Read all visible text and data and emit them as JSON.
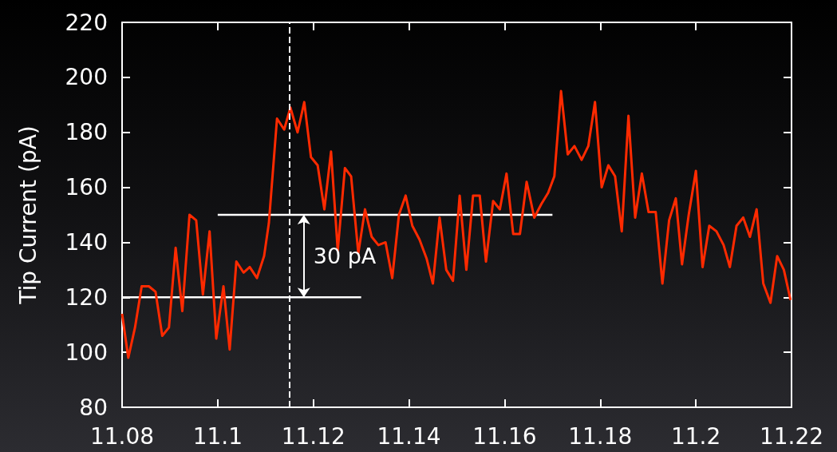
{
  "chart_data": {
    "type": "line",
    "ylabel": "Tip Current (pA)",
    "xlim": [
      11.08,
      11.22
    ],
    "xticks": [
      11.08,
      11.1,
      11.12,
      11.14,
      11.16,
      11.18,
      11.2,
      11.22
    ],
    "ylim": [
      80,
      220
    ],
    "yticks": [
      80,
      100,
      120,
      140,
      160,
      180,
      200,
      220
    ],
    "marker": "none",
    "series": [
      {
        "color": "#ff2a00",
        "x": [
          11.08,
          11.0813,
          11.0827,
          11.0841,
          11.0856,
          11.087,
          11.0884,
          11.0898,
          11.0912,
          11.0926,
          11.0941,
          11.0955,
          11.0969,
          11.0983,
          11.0997,
          11.1012,
          11.1025,
          11.1039,
          11.1054,
          11.1067,
          11.1082,
          11.1097,
          11.1107,
          11.1124,
          11.1139,
          11.1152,
          11.1167,
          11.1181,
          11.1195,
          11.1209,
          11.1223,
          11.1237,
          11.1251,
          11.1266,
          11.1279,
          11.1294,
          11.1308,
          11.1322,
          11.1336,
          11.1351,
          11.1365,
          11.1379,
          11.1393,
          11.1407,
          11.1422,
          11.1437,
          11.145,
          11.1464,
          11.1478,
          11.1492,
          11.1506,
          11.152,
          11.1534,
          11.1548,
          11.1561,
          11.1576,
          11.159,
          11.1604,
          11.1618,
          11.1632,
          11.1646,
          11.1662,
          11.1677,
          11.1691,
          11.1704,
          11.1718,
          11.1732,
          11.1746,
          11.1761,
          11.1775,
          11.1789,
          11.1803,
          11.1817,
          11.1831,
          11.1845,
          11.1859,
          11.1873,
          11.1887,
          11.1901,
          11.1916,
          11.193,
          11.1944,
          11.1958,
          11.1971,
          11.1985,
          11.2,
          11.2014,
          11.2028,
          11.2043,
          11.2058,
          11.2071,
          11.2085,
          11.2099,
          11.2113,
          11.2127,
          11.2141,
          11.2156,
          11.217,
          11.2184,
          11.2198
        ],
        "values": [
          114,
          98,
          109,
          124,
          124,
          122,
          106,
          109,
          138,
          115,
          150,
          148,
          121,
          144,
          105,
          124,
          101,
          133,
          129,
          131,
          127,
          135,
          147,
          185,
          181,
          189,
          180,
          191,
          171,
          168,
          152,
          173,
          137,
          167,
          164,
          136,
          152,
          142,
          139,
          140,
          127,
          150,
          157,
          146,
          141,
          134,
          125,
          149,
          130,
          126,
          157,
          130,
          157,
          157,
          133,
          155,
          152,
          165,
          143,
          143,
          162,
          149,
          154,
          158,
          164,
          195,
          172,
          175,
          170,
          175,
          191,
          160,
          168,
          164,
          144,
          186,
          149,
          165,
          151,
          151,
          125,
          148,
          156,
          132,
          150,
          166,
          131,
          146,
          144,
          139,
          131,
          146,
          149,
          142,
          152,
          125,
          118,
          135,
          130,
          119
        ]
      },
      {
        "type": "line",
        "color": "#ffffff",
        "x": [
          11.08,
          11.13
        ],
        "values": [
          120,
          120
        ]
      },
      {
        "type": "line",
        "color": "#ffffff",
        "x": [
          11.1,
          11.17
        ],
        "values": [
          150,
          150
        ]
      }
    ],
    "ref_lines": [
      {
        "axis": "x",
        "value": 11.115,
        "color": "#ffffff",
        "line_style": "dashed"
      }
    ],
    "annotations": [
      "30 pA"
    ]
  }
}
